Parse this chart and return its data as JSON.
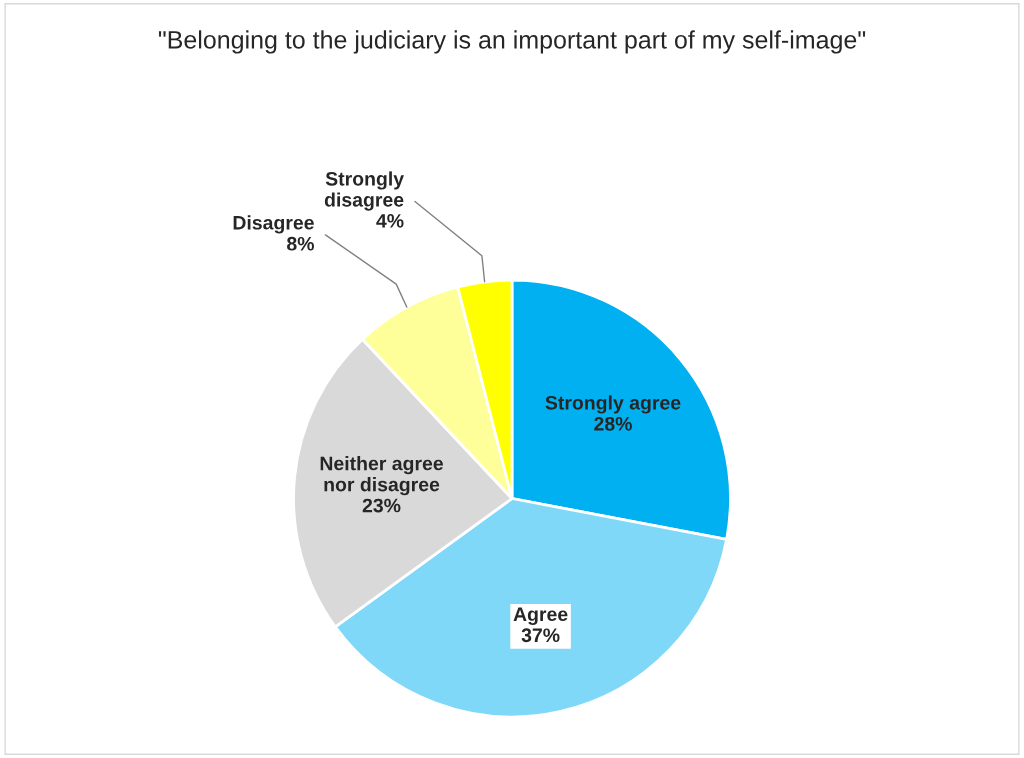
{
  "chart_data": {
    "type": "pie",
    "title": "\"Belonging to the judiciary is an important part of my self-image\"",
    "categories": [
      "Strongly agree",
      "Agree",
      "Neither agree nor disagree",
      "Disagree",
      "Strongly disagree"
    ],
    "values": [
      28,
      37,
      23,
      8,
      4
    ],
    "colors": [
      "#00b0f0",
      "#80d8f8",
      "#d9d9d9",
      "#ffff99",
      "#ffff00"
    ],
    "value_labels": [
      "28%",
      "37%",
      "23%",
      "8%",
      "4%"
    ],
    "legend": false
  }
}
